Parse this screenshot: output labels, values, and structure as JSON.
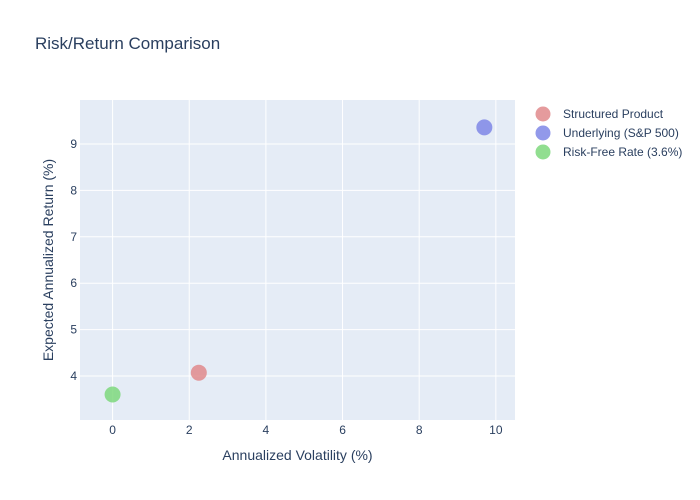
{
  "chart_data": {
    "type": "scatter",
    "title": "Risk/Return Comparison",
    "xlabel": "Annualized Volatility (%)",
    "ylabel": "Expected Annualized Return (%)",
    "xlim": [
      -0.85,
      10.5
    ],
    "ylim": [
      3.05,
      9.95
    ],
    "xticks": [
      0,
      2,
      4,
      6,
      8,
      10
    ],
    "yticks": [
      4,
      5,
      6,
      7,
      8,
      9
    ],
    "grid": true,
    "legend_position": "right",
    "series": [
      {
        "name": "Structured Product",
        "color": "#e08a8c",
        "points": [
          {
            "x": 2.25,
            "y": 4.07
          }
        ]
      },
      {
        "name": "Underlying (S&P 500)",
        "color": "#7f87e6",
        "points": [
          {
            "x": 9.7,
            "y": 9.36
          }
        ]
      },
      {
        "name": "Risk-Free Rate (3.6%)",
        "color": "#7ed87c",
        "points": [
          {
            "x": 0,
            "y": 3.6
          }
        ]
      }
    ]
  },
  "colors": {
    "plot_background": "#e5ecf6",
    "gridline": "#ffffff",
    "text": "#2a3f5f"
  }
}
